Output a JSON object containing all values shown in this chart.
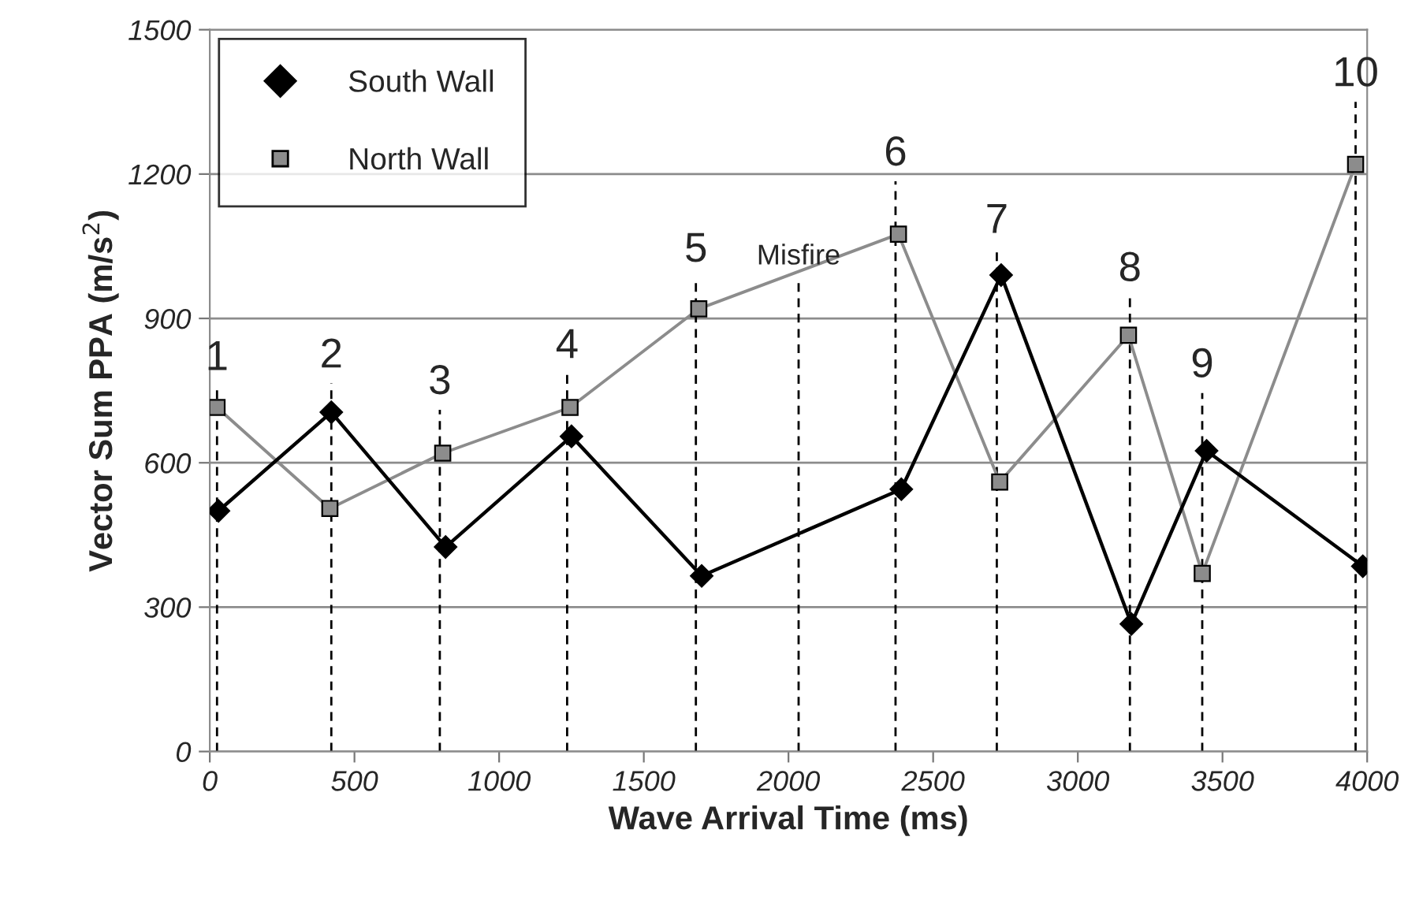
{
  "chart_data": {
    "type": "line",
    "xlabel": "Wave Arrival Time (ms)",
    "ylabel": "Vector Sum PPA (m/s$^{2}$)",
    "xlim": [
      0,
      4000
    ],
    "xticks": [
      0,
      500,
      1000,
      1500,
      2000,
      2500,
      3000,
      3500,
      4000
    ],
    "ylim": [
      0,
      1500
    ],
    "yticks": [
      0,
      300,
      600,
      900,
      1200,
      1500
    ],
    "grid": "y",
    "legend": "top left",
    "series": [
      {
        "name": "South Wall",
        "color": "#000000",
        "marker": "diamond",
        "x": [
          30,
          420,
          815,
          1250,
          1700,
          2390,
          2735,
          3185,
          3445,
          3985
        ],
        "values": [
          500,
          705,
          425,
          655,
          365,
          545,
          990,
          265,
          625,
          385
        ]
      },
      {
        "name": "North Wall",
        "color": "#8c8c8c",
        "marker": "square",
        "x": [
          25,
          415,
          805,
          1245,
          1690,
          2380,
          2730,
          3175,
          3430,
          3960
        ],
        "values": [
          715,
          505,
          620,
          715,
          920,
          1075,
          560,
          865,
          370,
          1220
        ]
      }
    ],
    "ref_lines": [
      {
        "axis": "x",
        "value": 25,
        "line_style": "dashed"
      },
      {
        "axis": "x",
        "value": 420,
        "line_style": "dashed"
      },
      {
        "axis": "x",
        "value": 795,
        "line_style": "dashed"
      },
      {
        "axis": "x",
        "value": 1235,
        "line_style": "dashed"
      },
      {
        "axis": "x",
        "value": 1680,
        "line_style": "dashed"
      },
      {
        "axis": "x",
        "value": 2035,
        "line_style": "dashed"
      },
      {
        "axis": "x",
        "value": 2370,
        "line_style": "dashed"
      },
      {
        "axis": "x",
        "value": 2720,
        "line_style": "dashed"
      },
      {
        "axis": "x",
        "value": 3180,
        "line_style": "dashed"
      },
      {
        "axis": "x",
        "value": 3430,
        "line_style": "dashed"
      },
      {
        "axis": "x",
        "value": 3960,
        "line_style": "dashed"
      }
    ],
    "annotations": [
      {
        "text": "1",
        "x": 25,
        "y": 775
      },
      {
        "text": "2",
        "x": 420,
        "y": 780
      },
      {
        "text": "3",
        "x": 795,
        "y": 725
      },
      {
        "text": "4",
        "x": 1235,
        "y": 800
      },
      {
        "text": "5",
        "x": 1680,
        "y": 1000
      },
      {
        "text": "Misfire",
        "x": 2035,
        "y": 1000
      },
      {
        "text": "6",
        "x": 2370,
        "y": 1200
      },
      {
        "text": "7",
        "x": 2720,
        "y": 1060
      },
      {
        "text": "8",
        "x": 3180,
        "y": 960
      },
      {
        "text": "9",
        "x": 3430,
        "y": 760
      },
      {
        "text": "10",
        "x": 3960,
        "y": 1365
      }
    ]
  }
}
